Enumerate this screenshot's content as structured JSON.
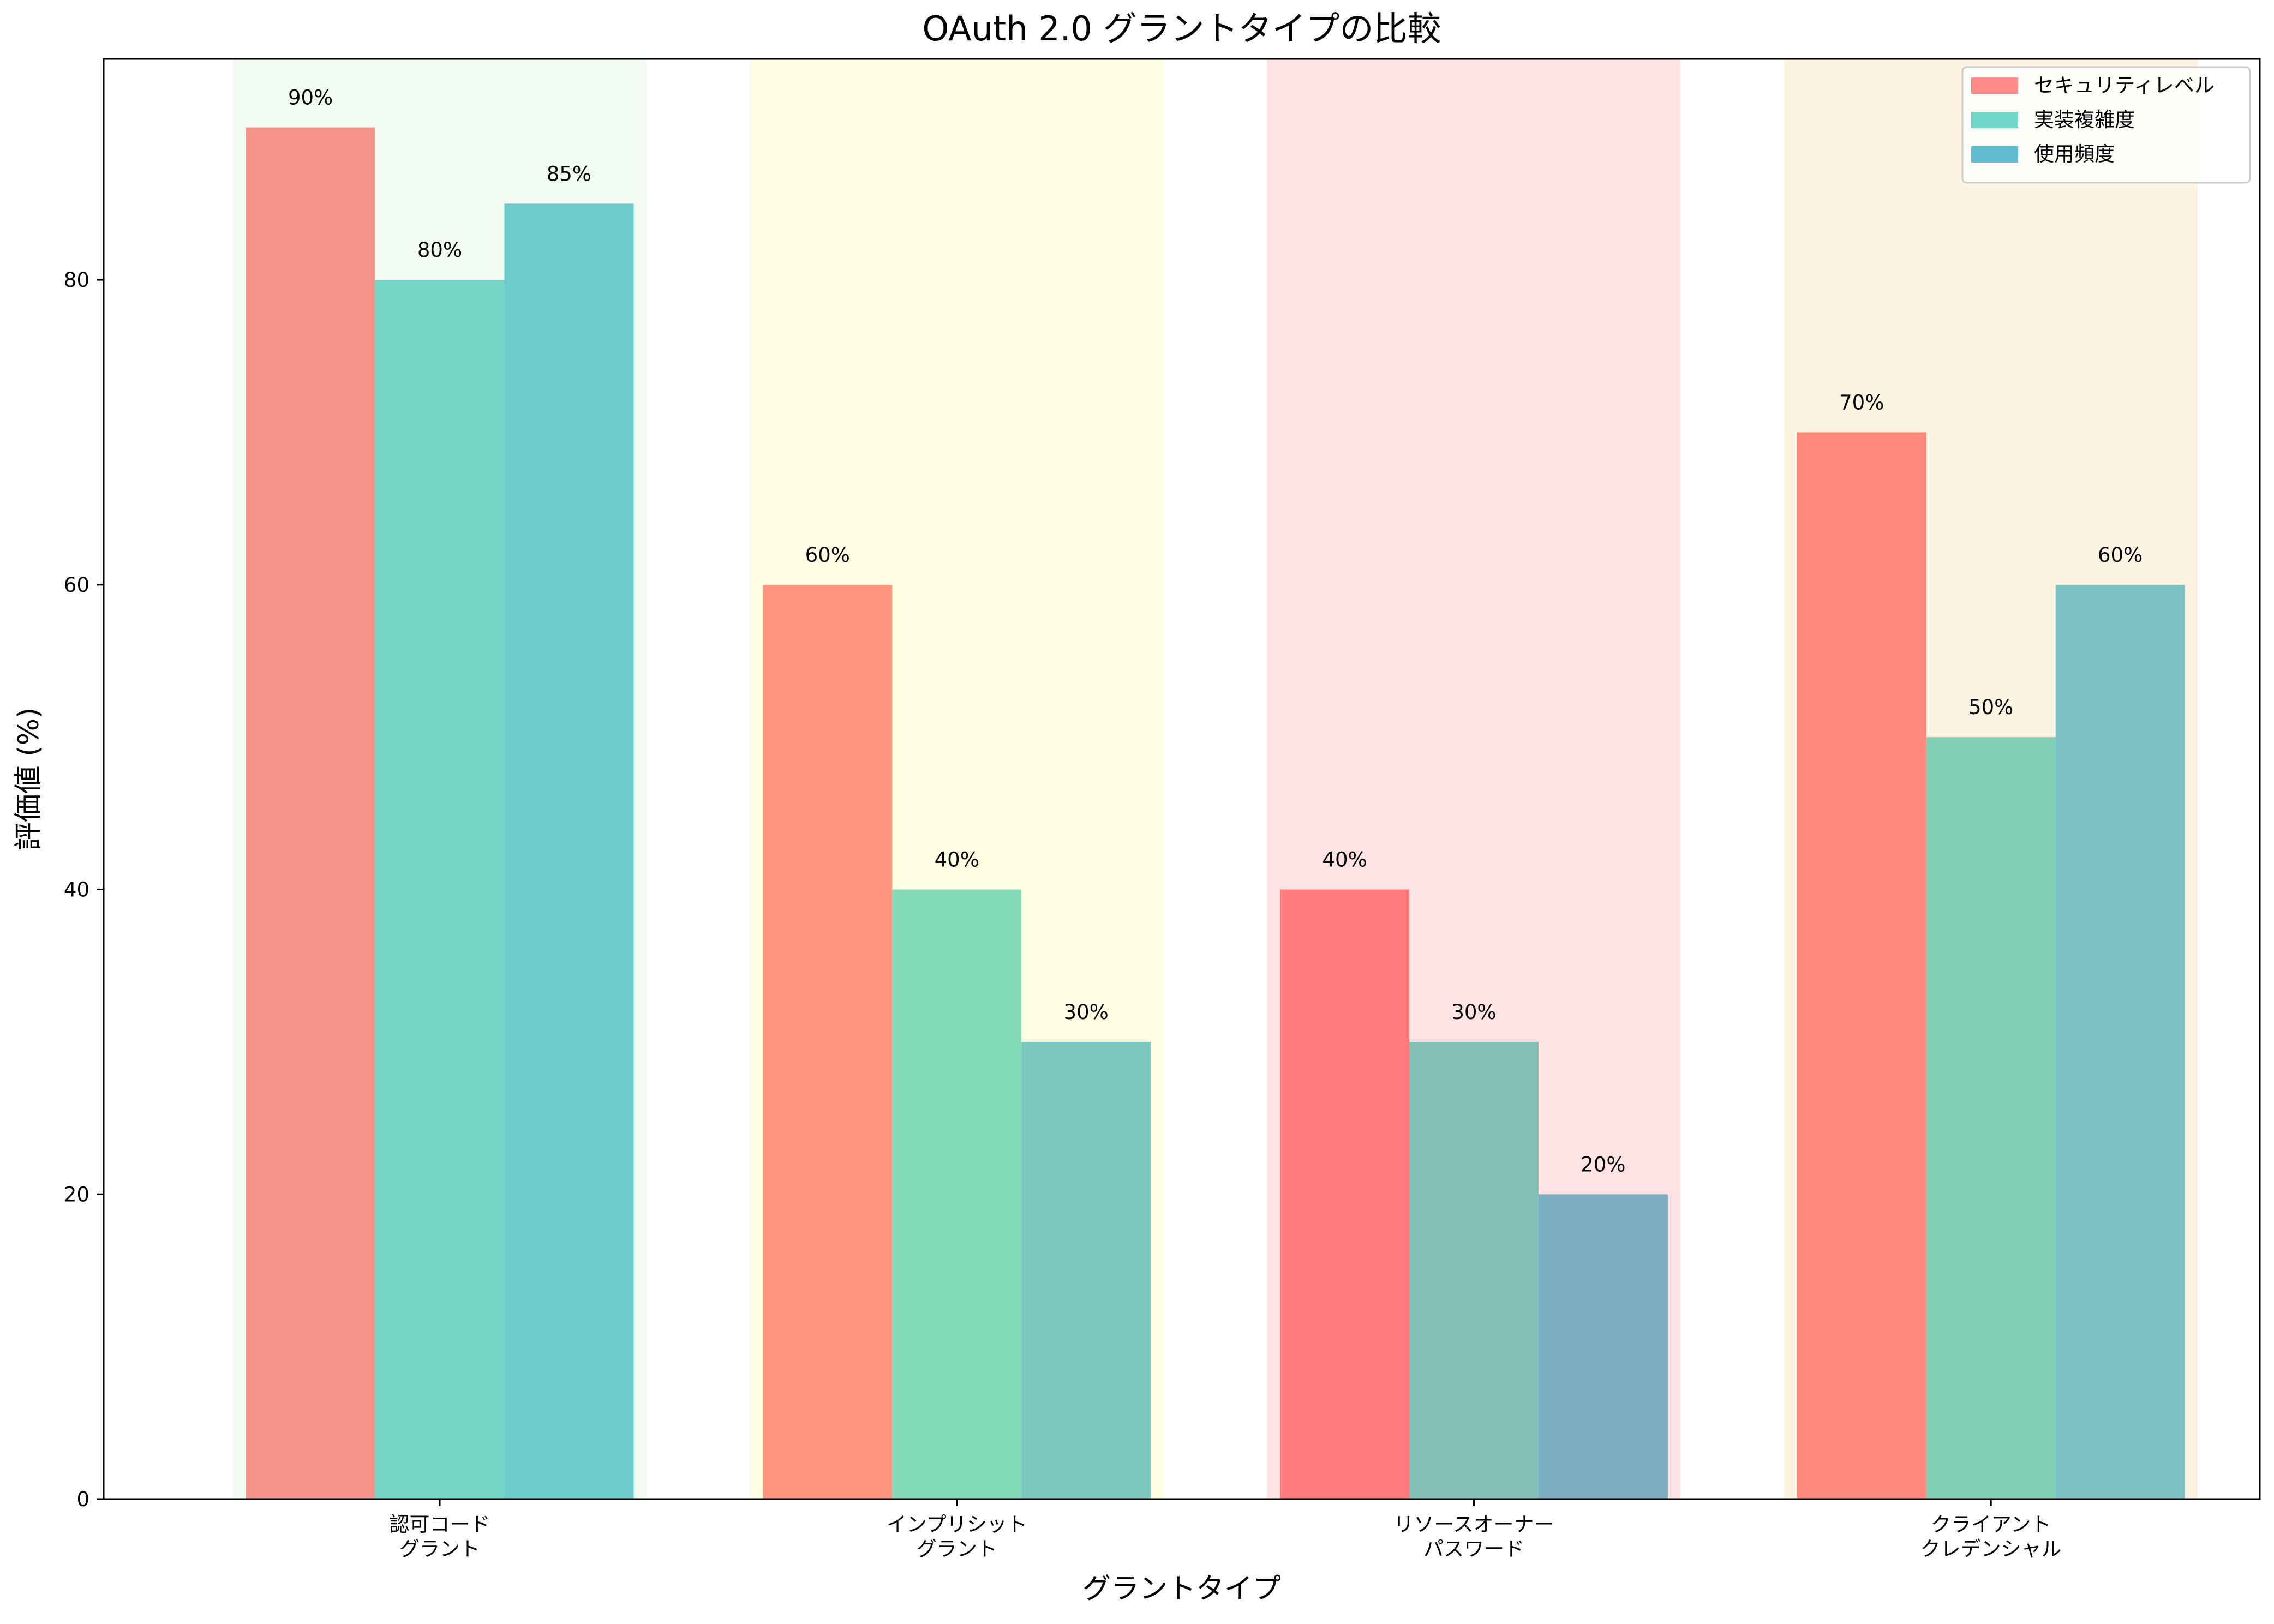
{
  "chart_data": {
    "type": "bar",
    "title": "OAuth 2.0 グラントタイプの比較",
    "xlabel": "グラントタイプ",
    "ylabel": "評価値 (%)",
    "ylim": [
      0,
      94.5
    ],
    "yticks": [
      0,
      20,
      40,
      60,
      80
    ],
    "grid": false,
    "legend_position": "top-right",
    "categories": [
      [
        "認可コード",
        "グラント"
      ],
      [
        "インプリシット",
        "グラント"
      ],
      [
        "リソースオーナー",
        "パスワード"
      ],
      [
        "クライアント",
        "クレデンシャル"
      ]
    ],
    "band_colors": [
      "#f1fbf1",
      "#fefee2",
      "#ffe2e4",
      "#fdf3e1"
    ],
    "series": [
      {
        "name": "セキュリティレベル",
        "legend_color": "#ff8b8b",
        "values": [
          90,
          60,
          40,
          70
        ],
        "colors": [
          "#f4938a",
          "#fe957c",
          "#ff7b7b",
          "#ff8a7b"
        ]
      },
      {
        "name": "実装複雑度",
        "legend_color": "#72d6c8",
        "values": [
          80,
          40,
          30,
          50
        ],
        "colors": [
          "#75d6c8",
          "#83dbb8",
          "#83c0b8",
          "#80d0b8"
        ]
      },
      {
        "name": "使用頻度",
        "legend_color": "#62bcd2",
        "values": [
          85,
          30,
          20,
          60
        ],
        "colors": [
          "#6ccbcd",
          "#7cc8be",
          "#7baec3",
          "#7cc1c3"
        ]
      }
    ],
    "value_suffix": "%"
  }
}
